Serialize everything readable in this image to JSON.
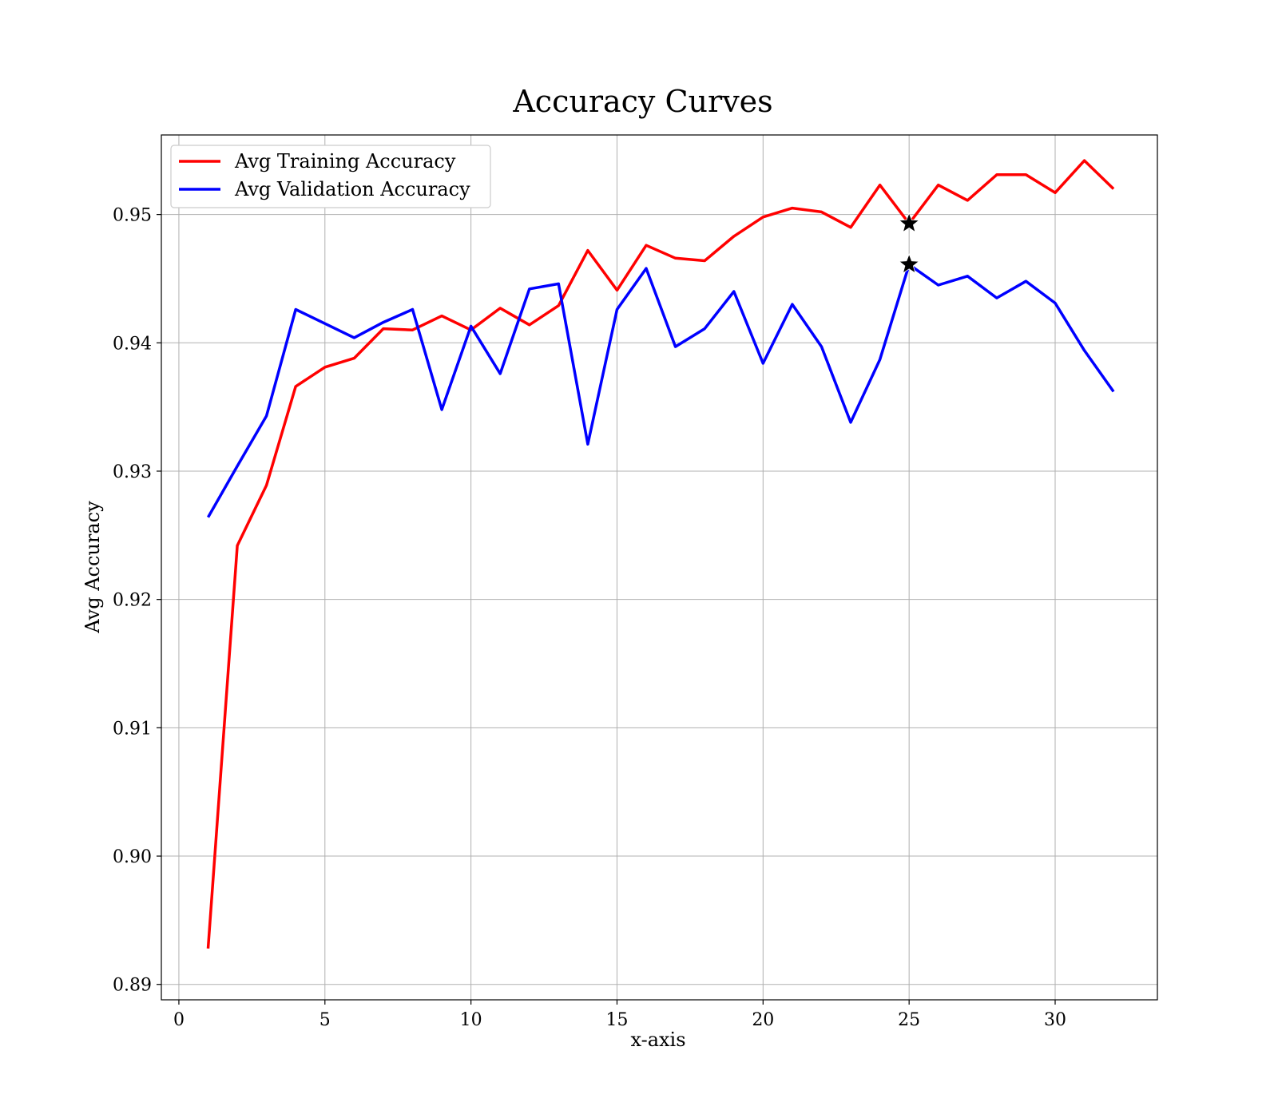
{
  "chart_data": {
    "type": "line",
    "title": "Accuracy Curves",
    "xlabel": "x-axis",
    "ylabel": "Avg Accuracy",
    "xlim": [
      -0.6,
      33.5
    ],
    "ylim": [
      0.8888,
      0.9562
    ],
    "xticks": [
      0,
      5,
      10,
      15,
      20,
      25,
      30
    ],
    "xtick_labels": [
      "0",
      "5",
      "10",
      "15",
      "20",
      "25",
      "30"
    ],
    "yticks": [
      0.89,
      0.9,
      0.91,
      0.92,
      0.93,
      0.94,
      0.95
    ],
    "ytick_labels": [
      "0.89",
      "0.90",
      "0.91",
      "0.92",
      "0.93",
      "0.94",
      "0.95"
    ],
    "grid": true,
    "legend_position": "top-left",
    "x": [
      1,
      2,
      3,
      4,
      5,
      6,
      7,
      8,
      9,
      10,
      11,
      12,
      13,
      14,
      15,
      16,
      17,
      18,
      19,
      20,
      21,
      22,
      23,
      24,
      25,
      26,
      27,
      28,
      29,
      30,
      31,
      32
    ],
    "series": [
      {
        "name": "Avg Training Accuracy",
        "color": "#ff0000",
        "values": [
          0.8928,
          0.9242,
          0.9289,
          0.9366,
          0.9381,
          0.9388,
          0.9411,
          0.941,
          0.9421,
          0.941,
          0.9427,
          0.9414,
          0.9429,
          0.9472,
          0.9441,
          0.9476,
          0.9466,
          0.9464,
          0.9483,
          0.9498,
          0.9505,
          0.9502,
          0.949,
          0.9523,
          0.9493,
          0.9523,
          0.9511,
          0.9531,
          0.9531,
          0.9517,
          0.9542,
          0.952
        ]
      },
      {
        "name": "Avg Validation Accuracy",
        "color": "#0000ff",
        "values": [
          0.9264,
          0.9304,
          0.9343,
          0.9426,
          0.9415,
          0.9404,
          0.9416,
          0.9426,
          0.9348,
          0.9413,
          0.9376,
          0.9442,
          0.9446,
          0.9321,
          0.9426,
          0.9458,
          0.9397,
          0.9411,
          0.944,
          0.9384,
          0.943,
          0.9397,
          0.9338,
          0.9387,
          0.9461,
          0.9445,
          0.9452,
          0.9435,
          0.9448,
          0.9431,
          0.9394,
          0.9362
        ]
      }
    ],
    "markers": [
      {
        "x": 25,
        "y": 0.9493,
        "symbol": "star",
        "color": "#000000"
      },
      {
        "x": 25,
        "y": 0.9461,
        "symbol": "star",
        "color": "#000000"
      }
    ]
  }
}
